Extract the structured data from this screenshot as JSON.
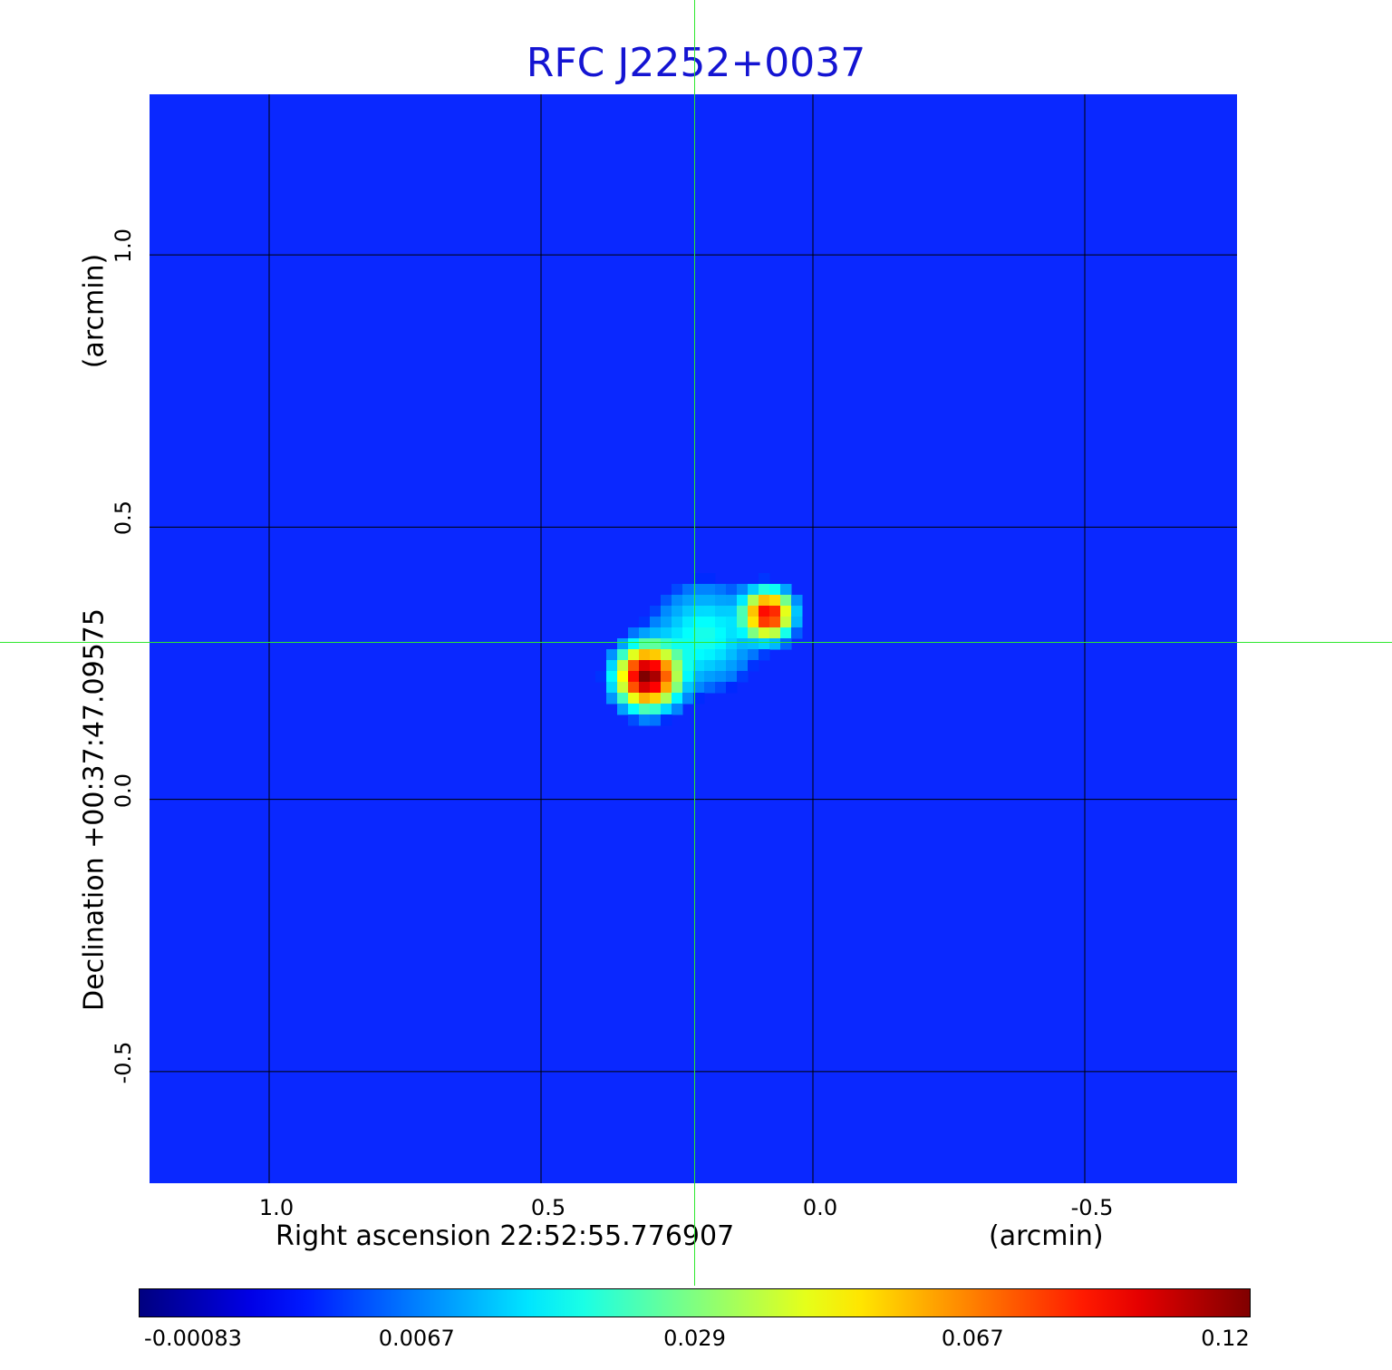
{
  "chart_data": {
    "type": "heatmap",
    "title": "RFC J2252+0037",
    "xlabel": "Right ascension  22:52:55.776907",
    "xunit": "(arcmin)",
    "ylabel": "Declination  +00:37:47.09575",
    "yunit": "(arcmin)",
    "x_ticks": [
      "1.0",
      "0.5",
      "0.0",
      "-0.5"
    ],
    "x_tick_values": [
      1.0,
      0.5,
      0.0,
      -0.5
    ],
    "y_ticks": [
      "1.0",
      "0.5",
      "0.0",
      "-0.5"
    ],
    "y_tick_values": [
      1.0,
      0.5,
      0.0,
      -0.5
    ],
    "xlim": [
      1.22,
      -0.78
    ],
    "ylim": [
      -0.705,
      1.295
    ],
    "grid": true,
    "crosshair": {
      "x": 0.22,
      "y": 0.287
    },
    "colorbar": {
      "ticks": [
        "-0.00083",
        "0.0067",
        "0.029",
        "0.067",
        "0.12"
      ],
      "colormap": "jet"
    },
    "components": [
      {
        "x": 0.305,
        "y": 0.225,
        "peak": 0.12,
        "sigma": 0.033
      },
      {
        "x": 0.082,
        "y": 0.34,
        "peak": 0.095,
        "sigma": 0.026
      },
      {
        "x": 0.2,
        "y": 0.3,
        "peak": 0.02,
        "sigma": 0.06
      }
    ],
    "background_color": "#0a28ff"
  }
}
